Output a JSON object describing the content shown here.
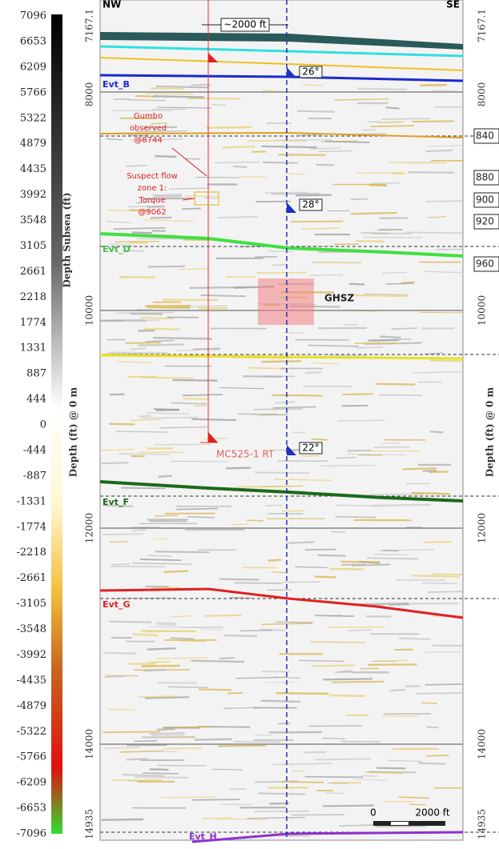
{
  "colorbar": {
    "title": "Depth Subsea (ft)",
    "labels": [
      "7096",
      "6653",
      "6209",
      "5766",
      "5322",
      "4879",
      "4435",
      "3992",
      "3548",
      "3105",
      "2661",
      "2218",
      "1774",
      "1331",
      "887",
      "444",
      "0",
      "-444",
      "-887",
      "-1331",
      "-1774",
      "-2218",
      "-2661",
      "-3105",
      "-3548",
      "-3992",
      "-4435",
      "-4879",
      "-5322",
      "-5766",
      "-6209",
      "-6653",
      "-7096"
    ]
  },
  "section": {
    "compass": {
      "left": "NW",
      "right": "SE"
    },
    "depth_axis_label": "Depth (ft) @ 0 m",
    "depth_ticks": [
      "7167.1",
      "8000",
      "10000",
      "12000",
      "14000",
      "14935"
    ],
    "horizons": [
      "Evt_B",
      "Evt_D",
      "Evt_F",
      "Evt_G",
      "Evt_H"
    ],
    "depth_markers": [
      "840",
      "880",
      "900",
      "920",
      "960"
    ],
    "angles": [
      "26°",
      "28°",
      "22°"
    ],
    "spacing": "~2000 ft",
    "zone": "GHSZ",
    "annotations": [
      [
        "Gumbo",
        "observed",
        "@8744"
      ],
      [
        "Suspect flow",
        "zone 1:",
        "Torque",
        "@9062"
      ]
    ],
    "well": "MC525-1 RT",
    "scale_bar": {
      "start": "0",
      "end": "2000 ft"
    }
  }
}
